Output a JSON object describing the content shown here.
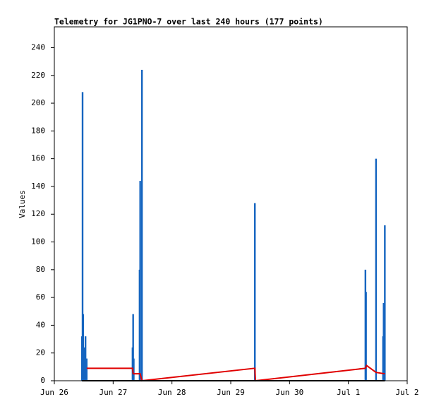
{
  "chart_data": {
    "type": "line",
    "title": "Telemetry for JG1PNO-7 over last 240 hours (177 points)",
    "y_label": "Values",
    "xlim": [
      0,
      6
    ],
    "xticks": [
      {
        "value": 0,
        "label": "Jun 26"
      },
      {
        "value": 1,
        "label": "Jun 27"
      },
      {
        "value": 2,
        "label": "Jun 28"
      },
      {
        "value": 3,
        "label": "Jun 29"
      },
      {
        "value": 4,
        "label": "Jun 30"
      },
      {
        "value": 5,
        "label": "Jul 1"
      },
      {
        "value": 6,
        "label": "Jul 2"
      }
    ],
    "ylim": [
      0,
      255
    ],
    "yticks": [
      0,
      20,
      40,
      60,
      80,
      100,
      120,
      140,
      160,
      180,
      200,
      220,
      240
    ],
    "series": [
      {
        "style": "impulse",
        "color": "#1565c0",
        "x": [
          0.47,
          0.48,
          0.49,
          0.51,
          0.53,
          0.55,
          1.33,
          1.34,
          1.35,
          1.45,
          1.46,
          1.49,
          3.41,
          5.29,
          5.3,
          5.47,
          5.59,
          5.6,
          5.62
        ],
        "values": [
          32,
          208,
          48,
          24,
          32,
          16,
          24,
          48,
          16,
          80,
          144,
          224,
          128,
          80,
          64,
          160,
          32,
          56,
          112
        ]
      },
      {
        "style": "line",
        "color": "#e00000",
        "x": [
          0.55,
          1.33,
          1.34,
          1.46,
          1.49,
          3.41,
          3.42,
          5.29,
          5.31,
          5.47,
          5.62
        ],
        "values": [
          9,
          9,
          5,
          5,
          0,
          9,
          0,
          9,
          11,
          6,
          5
        ]
      },
      {
        "style": "line",
        "color": "#000000",
        "x": [
          0.47,
          5.62
        ],
        "values": [
          0,
          0
        ]
      }
    ]
  }
}
